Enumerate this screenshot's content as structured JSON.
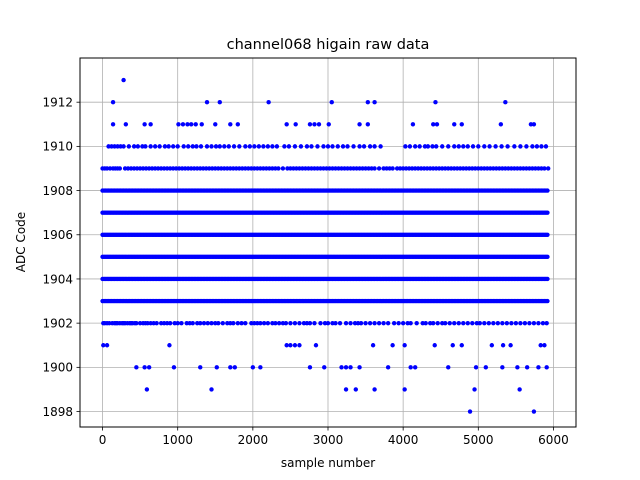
{
  "chart_data": {
    "type": "scatter",
    "title": "channel068 higain raw data",
    "xlabel": "sample number",
    "ylabel": "ADC Code",
    "xlim": [
      -300,
      6300
    ],
    "ylim": [
      1897.3,
      1914.0
    ],
    "grid": true,
    "marker_color": "#0000ff",
    "x_ticks": [
      0,
      1000,
      2000,
      3000,
      4000,
      5000,
      6000
    ],
    "x_tick_labels": [
      "0",
      "1000",
      "2000",
      "3000",
      "4000",
      "5000",
      "6000"
    ],
    "y_ticks": [
      1898,
      1900,
      1902,
      1904,
      1906,
      1908,
      1910,
      1912
    ],
    "y_tick_labels": [
      "1898",
      "1900",
      "1902",
      "1904",
      "1906",
      "1908",
      "1910",
      "1912"
    ],
    "n_samples": 5940,
    "dense_levels": [
      1903,
      1904,
      1905,
      1906,
      1907,
      1908
    ],
    "sparse_levels": [
      {
        "y": 1902,
        "x": [
          10,
          30,
          60,
          90,
          130,
          160,
          180,
          200,
          230,
          260,
          280,
          300,
          330,
          360,
          380,
          400,
          430,
          450,
          500,
          540,
          570,
          600,
          640,
          680,
          720,
          780,
          820,
          860,
          900,
          960,
          1000,
          1050,
          1120,
          1160,
          1200,
          1260,
          1300,
          1350,
          1400,
          1450,
          1500,
          1540,
          1600,
          1660,
          1700,
          1740,
          1800,
          1850,
          1900,
          1980,
          2020,
          2060,
          2100,
          2150,
          2200,
          2260,
          2300,
          2350,
          2400,
          2440,
          2500,
          2560,
          2620,
          2680,
          2720,
          2760,
          2820,
          2900,
          2960,
          3000,
          3060,
          3100,
          3160,
          3240,
          3300,
          3360,
          3400,
          3440,
          3500,
          3560,
          3620,
          3680,
          3740,
          3800,
          3880,
          3940,
          4000,
          4060,
          4100,
          4180,
          4260,
          4300,
          4360,
          4400,
          4460,
          4520,
          4560,
          4620,
          4680,
          4740,
          4800,
          4860,
          4920,
          4980,
          5020,
          5080,
          5140,
          5200,
          5260,
          5320,
          5380,
          5440,
          5500,
          5560,
          5620,
          5680,
          5740,
          5800,
          5860,
          5910
        ]
      },
      {
        "y": 1909,
        "x": [
          0,
          30,
          60,
          100,
          140,
          170,
          200,
          230,
          300,
          340,
          380,
          420,
          460,
          500,
          540,
          580,
          620,
          660,
          700,
          740,
          780,
          820,
          860,
          900,
          940,
          980,
          1020,
          1060,
          1100,
          1140,
          1180,
          1220,
          1260,
          1300,
          1340,
          1380,
          1420,
          1460,
          1500,
          1540,
          1580,
          1620,
          1660,
          1700,
          1740,
          1780,
          1820,
          1860,
          1900,
          1940,
          1980,
          2020,
          2060,
          2100,
          2140,
          2180,
          2220,
          2260,
          2300,
          2340,
          2400,
          2460,
          2500,
          2540,
          2580,
          2620,
          2660,
          2700,
          2740,
          2780,
          2820,
          2860,
          2900,
          2940,
          2980,
          3020,
          3060,
          3100,
          3140,
          3180,
          3220,
          3260,
          3300,
          3340,
          3380,
          3420,
          3460,
          3500,
          3540,
          3580,
          3620,
          3680,
          3740,
          3780,
          3820,
          3860,
          3920,
          3960,
          4000,
          4040,
          4080,
          4120,
          4160,
          4200,
          4240,
          4280,
          4320,
          4360,
          4400,
          4440,
          4480,
          4520,
          4560,
          4600,
          4640,
          4680,
          4720,
          4760,
          4800,
          4840,
          4880,
          4920,
          4960,
          5000,
          5040,
          5080,
          5120,
          5160,
          5200,
          5240,
          5280,
          5320,
          5360,
          5400,
          5440,
          5480,
          5520,
          5560,
          5600,
          5640,
          5680,
          5720,
          5760,
          5800,
          5840,
          5880,
          5930
        ]
      },
      {
        "y": 1910,
        "x": [
          80,
          120,
          160,
          200,
          240,
          280,
          350,
          420,
          470,
          530,
          570,
          640,
          700,
          760,
          830,
          880,
          940,
          1000,
          1080,
          1140,
          1200,
          1250,
          1310,
          1390,
          1450,
          1510,
          1560,
          1620,
          1680,
          1750,
          1820,
          1900,
          1960,
          2020,
          2080,
          2140,
          2200,
          2260,
          2320,
          2420,
          2480,
          2560,
          2640,
          2720,
          2780,
          2860,
          2940,
          3000,
          3060,
          3130,
          3200,
          3260,
          3340,
          3420,
          3480,
          3560,
          3620,
          3700,
          4030,
          4090,
          4160,
          4220,
          4290,
          4330,
          4390,
          4440,
          4520,
          4600,
          4680,
          4740,
          4800,
          4860,
          4930,
          5000,
          5080,
          5150,
          5230,
          5310,
          5390,
          5480,
          5560,
          5640,
          5720,
          5780,
          5840,
          5900
        ]
      },
      {
        "y": 1911,
        "x": [
          140,
          310,
          560,
          640,
          1010,
          1070,
          1130,
          1180,
          1240,
          1320,
          1500,
          1700,
          1800,
          2450,
          2570,
          2760,
          2820,
          2880,
          3010,
          3420,
          3530,
          4130,
          4400,
          4450,
          4680,
          4780,
          5300,
          5700,
          5740
        ]
      },
      {
        "y": 1912,
        "x": [
          140,
          1390,
          1560,
          2210,
          3050,
          3530,
          3620,
          4430,
          5360
        ]
      },
      {
        "y": 1913,
        "x": [
          280
        ]
      },
      {
        "y": 1901,
        "x": [
          10,
          60,
          890,
          2450,
          2500,
          2560,
          2620,
          2840,
          3600,
          3860,
          4020,
          4420,
          4660,
          4780,
          5180,
          5330,
          5430,
          5830,
          5880
        ]
      },
      {
        "y": 1900,
        "x": [
          450,
          560,
          620,
          950,
          1300,
          1520,
          1700,
          1760,
          2000,
          2100,
          2760,
          2950,
          3180,
          3240,
          3300,
          3420,
          3800,
          4100,
          4160,
          4600,
          4970,
          5100,
          5320,
          5520,
          5650,
          5800,
          5910
        ]
      },
      {
        "y": 1899,
        "x": [
          590,
          1450,
          3240,
          3370,
          3620,
          4020,
          4950,
          5550
        ]
      },
      {
        "y": 1898,
        "x": [
          4890,
          5740
        ]
      }
    ]
  }
}
